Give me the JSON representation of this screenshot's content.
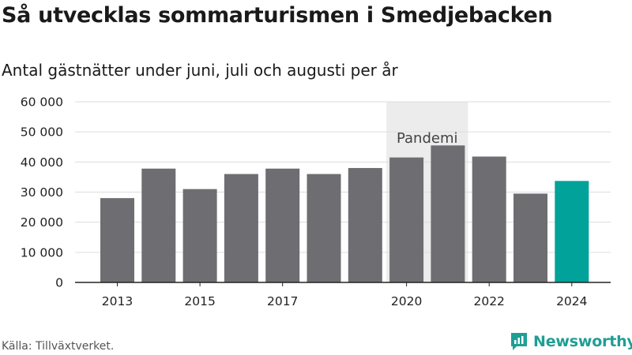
{
  "title": "Så utvecklas sommarturismen i Smedjebacken",
  "subtitle": "Antal gästnätter under juni, juli och augusti per år",
  "source": "Källa: Tillväxtverket.",
  "brand": {
    "name": "Newsworthy",
    "icon": "newsworthy-logo-icon",
    "color": "#1f9e94"
  },
  "colors": {
    "bar": "#6e6d72",
    "highlight": "#00a29a",
    "pandemic_band": "#ececec",
    "grid": "#dddddd"
  },
  "chart_data": {
    "type": "bar",
    "title": "Så utvecklas sommarturismen i Smedjebacken",
    "subtitle": "Antal gästnätter under juni, juli och augusti per år",
    "xlabel": "",
    "ylabel": "",
    "categories": [
      "2013",
      "2014",
      "2015",
      "2016",
      "2017",
      "2018",
      "2019",
      "2020",
      "2021",
      "2022",
      "2023",
      "2024"
    ],
    "values": [
      28000,
      37800,
      31000,
      36000,
      37800,
      36000,
      38000,
      41500,
      45500,
      41800,
      29500,
      33700
    ],
    "highlight_category": "2024",
    "x_tick_labels": [
      "2013",
      "2015",
      "2017",
      "2020",
      "2022",
      "2024"
    ],
    "y_ticks": [
      0,
      10000,
      20000,
      30000,
      40000,
      50000,
      60000
    ],
    "y_tick_labels": [
      "0",
      "10 000",
      "20 000",
      "30 000",
      "40 000",
      "50 000",
      "60 000"
    ],
    "ylim": [
      0,
      60000
    ],
    "grid": true,
    "annotation": {
      "text": "Pandemi",
      "from": "2020",
      "to": "2021"
    }
  }
}
